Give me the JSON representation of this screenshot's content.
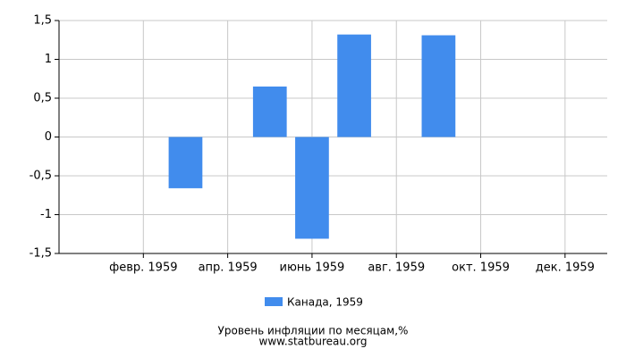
{
  "chart_data": {
    "type": "bar",
    "title": "Уровень инфляции по месяцам,%",
    "subtitle": "www.statbureau.org",
    "categories": [
      null,
      "февр. 1959",
      null,
      "апр. 1959",
      null,
      "июнь 1959",
      null,
      "авг. 1959",
      null,
      "окт. 1959",
      null,
      "дек. 1959"
    ],
    "series": [
      {
        "name": "Канада, 1959",
        "color": "#418ced",
        "values": [
          0,
          0,
          -0.66,
          0,
          0.65,
          -1.31,
          1.32,
          0,
          1.31,
          0,
          0,
          0
        ]
      }
    ],
    "ylim": [
      -1.5,
      1.5
    ],
    "yticks": [
      {
        "value": -1.5,
        "label": "-1,5"
      },
      -1,
      {
        "value": -0.5,
        "label": "-0,5"
      },
      0,
      {
        "value": 0.5,
        "label": "0,5"
      },
      1,
      {
        "value": 1.5,
        "label": "1,5"
      }
    ],
    "grid": true,
    "legend": "bottom"
  }
}
